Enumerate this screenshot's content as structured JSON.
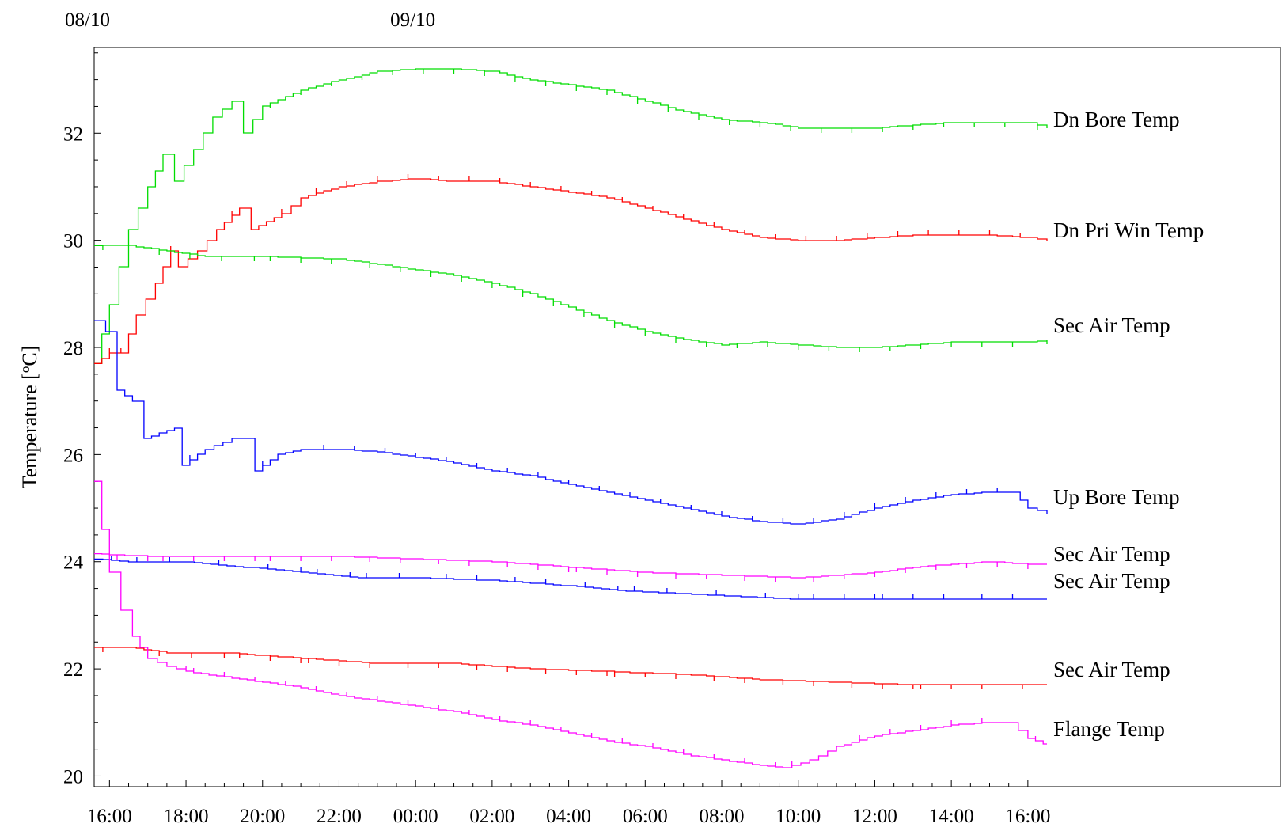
{
  "chart_data": {
    "type": "line",
    "title": "",
    "ylabel": "Temperature [°C]",
    "ylabel_parts": {
      "prefix": "Temperature [",
      "sup": "o",
      "suffix": "C]"
    },
    "xlabel": "",
    "date_labels": [
      {
        "text": "08/10",
        "hour": 15.6
      },
      {
        "text": "09/10",
        "hour": 24.0
      }
    ],
    "x_ticks": [
      "16:00",
      "18:00",
      "20:00",
      "22:00",
      "00:00",
      "02:00",
      "04:00",
      "06:00",
      "08:00",
      "10:00",
      "12:00",
      "14:00",
      "16:00"
    ],
    "x_tick_hours": [
      16,
      18,
      20,
      22,
      24,
      26,
      28,
      30,
      32,
      34,
      36,
      38,
      40
    ],
    "x_unit_note": "hours since 08/10 00:00",
    "xlim": [
      15.6,
      46.6
    ],
    "y_ticks": [
      20,
      22,
      24,
      26,
      28,
      30,
      32
    ],
    "ylim": [
      19.8,
      33.6
    ],
    "grid": false,
    "legend": "labels at right end of each line",
    "colors": {
      "green": "#00dd00",
      "red": "#ff0000",
      "blue": "#0000ff",
      "magenta": "#ff00ff"
    },
    "series": [
      {
        "name": "Dn Bore Temp",
        "color": "#00dd00",
        "points": [
          [
            15.6,
            27.7
          ],
          [
            16.0,
            28.8
          ],
          [
            16.5,
            30.2
          ],
          [
            17.0,
            31.0
          ],
          [
            17.4,
            31.6
          ],
          [
            17.7,
            31.1
          ],
          [
            18.2,
            31.7
          ],
          [
            18.7,
            32.3
          ],
          [
            19.2,
            32.6
          ],
          [
            19.5,
            32.0
          ],
          [
            20.0,
            32.5
          ],
          [
            21.0,
            32.8
          ],
          [
            22.0,
            33.0
          ],
          [
            23.0,
            33.15
          ],
          [
            24.0,
            33.2
          ],
          [
            25.0,
            33.2
          ],
          [
            26.0,
            33.15
          ],
          [
            27.0,
            33.0
          ],
          [
            28.0,
            32.9
          ],
          [
            29.0,
            32.8
          ],
          [
            30.0,
            32.6
          ],
          [
            31.0,
            32.4
          ],
          [
            32.0,
            32.25
          ],
          [
            33.0,
            32.2
          ],
          [
            34.0,
            32.1
          ],
          [
            35.0,
            32.1
          ],
          [
            36.0,
            32.1
          ],
          [
            37.0,
            32.15
          ],
          [
            38.0,
            32.2
          ],
          [
            39.0,
            32.2
          ],
          [
            40.0,
            32.2
          ],
          [
            40.5,
            32.1
          ]
        ]
      },
      {
        "name": "Dn Pri Win Temp",
        "color": "#ff0000",
        "points": [
          [
            15.6,
            27.7
          ],
          [
            16.0,
            27.9
          ],
          [
            16.3,
            27.9
          ],
          [
            16.7,
            28.6
          ],
          [
            17.2,
            29.2
          ],
          [
            17.6,
            29.8
          ],
          [
            17.8,
            29.5
          ],
          [
            18.3,
            29.8
          ],
          [
            18.8,
            30.2
          ],
          [
            19.4,
            30.6
          ],
          [
            19.7,
            30.2
          ],
          [
            20.5,
            30.5
          ],
          [
            21.0,
            30.8
          ],
          [
            22.0,
            31.0
          ],
          [
            23.0,
            31.1
          ],
          [
            24.0,
            31.15
          ],
          [
            25.0,
            31.1
          ],
          [
            26.0,
            31.1
          ],
          [
            27.0,
            31.0
          ],
          [
            28.0,
            30.9
          ],
          [
            29.0,
            30.8
          ],
          [
            30.0,
            30.6
          ],
          [
            31.0,
            30.4
          ],
          [
            32.0,
            30.2
          ],
          [
            33.0,
            30.05
          ],
          [
            34.0,
            30.0
          ],
          [
            35.0,
            30.0
          ],
          [
            36.0,
            30.05
          ],
          [
            37.0,
            30.1
          ],
          [
            38.0,
            30.1
          ],
          [
            39.0,
            30.1
          ],
          [
            40.0,
            30.05
          ],
          [
            40.5,
            30.0
          ]
        ]
      },
      {
        "name": "Sec Air Temp",
        "color": "#00dd00",
        "points": [
          [
            15.6,
            29.9
          ],
          [
            16.5,
            29.9
          ],
          [
            17.5,
            29.8
          ],
          [
            18.5,
            29.7
          ],
          [
            20.0,
            29.7
          ],
          [
            22.0,
            29.65
          ],
          [
            23.0,
            29.55
          ],
          [
            24.0,
            29.45
          ],
          [
            25.0,
            29.35
          ],
          [
            26.0,
            29.2
          ],
          [
            27.0,
            29.0
          ],
          [
            28.0,
            28.75
          ],
          [
            29.0,
            28.5
          ],
          [
            30.0,
            28.3
          ],
          [
            31.0,
            28.15
          ],
          [
            32.0,
            28.05
          ],
          [
            33.0,
            28.1
          ],
          [
            34.0,
            28.05
          ],
          [
            35.0,
            28.0
          ],
          [
            36.0,
            28.0
          ],
          [
            37.0,
            28.05
          ],
          [
            38.0,
            28.1
          ],
          [
            39.0,
            28.1
          ],
          [
            40.0,
            28.1
          ],
          [
            40.5,
            28.15
          ]
        ]
      },
      {
        "name": "Up Bore Temp",
        "color": "#0000ff",
        "points": [
          [
            15.6,
            28.5
          ],
          [
            15.9,
            28.3
          ],
          [
            16.2,
            27.2
          ],
          [
            16.6,
            27.0
          ],
          [
            16.9,
            26.3
          ],
          [
            17.3,
            26.4
          ],
          [
            17.7,
            26.5
          ],
          [
            17.9,
            25.8
          ],
          [
            18.5,
            26.1
          ],
          [
            19.2,
            26.3
          ],
          [
            19.6,
            26.3
          ],
          [
            19.8,
            25.7
          ],
          [
            20.4,
            26.0
          ],
          [
            21.0,
            26.1
          ],
          [
            22.0,
            26.1
          ],
          [
            23.0,
            26.05
          ],
          [
            24.0,
            25.95
          ],
          [
            25.0,
            25.85
          ],
          [
            26.0,
            25.7
          ],
          [
            27.0,
            25.6
          ],
          [
            28.0,
            25.45
          ],
          [
            29.0,
            25.3
          ],
          [
            30.0,
            25.15
          ],
          [
            31.0,
            25.0
          ],
          [
            32.0,
            24.85
          ],
          [
            33.0,
            24.75
          ],
          [
            34.0,
            24.7
          ],
          [
            35.0,
            24.8
          ],
          [
            36.0,
            25.0
          ],
          [
            37.0,
            25.15
          ],
          [
            38.0,
            25.25
          ],
          [
            39.0,
            25.3
          ],
          [
            39.6,
            25.3
          ],
          [
            40.0,
            25.0
          ],
          [
            40.5,
            24.9
          ]
        ]
      },
      {
        "name": "Sec Air Temp",
        "color": "#ff00ff",
        "points": [
          [
            15.6,
            24.15
          ],
          [
            17.0,
            24.1
          ],
          [
            20.0,
            24.1
          ],
          [
            22.0,
            24.1
          ],
          [
            24.0,
            24.05
          ],
          [
            26.0,
            24.0
          ],
          [
            28.0,
            23.9
          ],
          [
            30.0,
            23.8
          ],
          [
            32.0,
            23.75
          ],
          [
            34.0,
            23.7
          ],
          [
            35.0,
            23.75
          ],
          [
            36.0,
            23.8
          ],
          [
            37.0,
            23.9
          ],
          [
            38.0,
            23.95
          ],
          [
            39.0,
            24.0
          ],
          [
            40.0,
            23.95
          ],
          [
            40.5,
            23.95
          ]
        ]
      },
      {
        "name": "Sec Air Temp",
        "color": "#0000ff",
        "points": [
          [
            15.6,
            24.05
          ],
          [
            16.5,
            24.0
          ],
          [
            18.0,
            24.0
          ],
          [
            19.5,
            23.9
          ],
          [
            21.0,
            23.8
          ],
          [
            22.5,
            23.7
          ],
          [
            24.0,
            23.7
          ],
          [
            26.0,
            23.65
          ],
          [
            28.0,
            23.55
          ],
          [
            29.5,
            23.45
          ],
          [
            31.0,
            23.4
          ],
          [
            32.5,
            23.35
          ],
          [
            34.0,
            23.3
          ],
          [
            36.0,
            23.3
          ],
          [
            38.0,
            23.3
          ],
          [
            40.0,
            23.3
          ],
          [
            40.5,
            23.3
          ]
        ]
      },
      {
        "name": "Sec Air Temp",
        "color": "#ff0000",
        "points": [
          [
            15.6,
            22.4
          ],
          [
            16.5,
            22.4
          ],
          [
            17.5,
            22.3
          ],
          [
            19.0,
            22.3
          ],
          [
            21.0,
            22.2
          ],
          [
            23.0,
            22.1
          ],
          [
            25.0,
            22.1
          ],
          [
            27.0,
            22.0
          ],
          [
            29.0,
            21.95
          ],
          [
            31.0,
            21.9
          ],
          [
            33.0,
            21.8
          ],
          [
            35.0,
            21.75
          ],
          [
            37.0,
            21.7
          ],
          [
            39.0,
            21.7
          ],
          [
            40.5,
            21.7
          ]
        ]
      },
      {
        "name": "Flange Temp",
        "color": "#ff00ff",
        "points": [
          [
            15.6,
            25.5
          ],
          [
            15.8,
            24.6
          ],
          [
            16.0,
            23.8
          ],
          [
            16.3,
            23.1
          ],
          [
            16.6,
            22.6
          ],
          [
            17.0,
            22.2
          ],
          [
            17.5,
            22.05
          ],
          [
            18.0,
            21.95
          ],
          [
            19.0,
            21.85
          ],
          [
            20.0,
            21.75
          ],
          [
            21.0,
            21.65
          ],
          [
            22.0,
            21.5
          ],
          [
            23.0,
            21.4
          ],
          [
            24.0,
            21.3
          ],
          [
            25.0,
            21.2
          ],
          [
            26.0,
            21.05
          ],
          [
            27.0,
            20.95
          ],
          [
            28.0,
            20.8
          ],
          [
            29.0,
            20.65
          ],
          [
            30.0,
            20.55
          ],
          [
            31.0,
            20.4
          ],
          [
            32.0,
            20.3
          ],
          [
            33.0,
            20.2
          ],
          [
            33.6,
            20.15
          ],
          [
            34.3,
            20.3
          ],
          [
            35.0,
            20.55
          ],
          [
            36.0,
            20.75
          ],
          [
            37.0,
            20.85
          ],
          [
            38.0,
            20.95
          ],
          [
            39.0,
            21.0
          ],
          [
            39.5,
            21.0
          ],
          [
            40.0,
            20.7
          ],
          [
            40.4,
            20.6
          ],
          [
            40.5,
            20.6
          ]
        ]
      }
    ]
  }
}
